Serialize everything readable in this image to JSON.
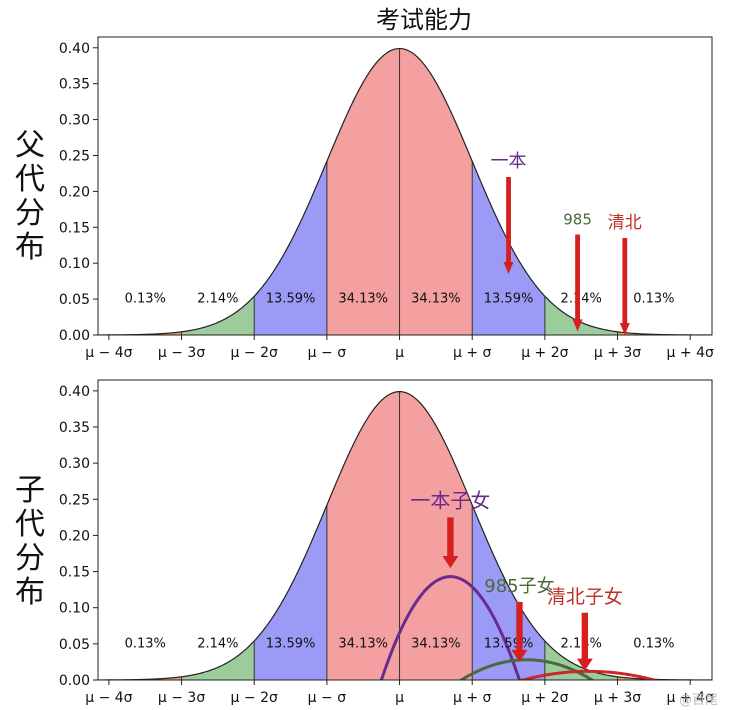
{
  "title": "考试能力",
  "watermark": "@百尾",
  "colors": {
    "red": "#f4a0a0",
    "blue": "#9b9bf7",
    "green": "#9ccc9c",
    "orange": "#f2a25a",
    "arrow": "#d62020"
  },
  "chart_data": [
    {
      "type": "area",
      "side_label": "父代分布",
      "x_ticks": [
        "μ − 4σ",
        "μ − 3σ",
        "μ − 2σ",
        "μ − σ",
        "μ",
        "μ + σ",
        "μ + 2σ",
        "μ + 3σ",
        "μ + 4σ"
      ],
      "x_tick_values": [
        -4,
        -3,
        -2,
        -1,
        0,
        1,
        2,
        3,
        4
      ],
      "xlim": [
        -4.15,
        4.3
      ],
      "ylim": [
        0,
        0.415
      ],
      "y_ticks": [
        "0.00",
        "0.05",
        "0.10",
        "0.15",
        "0.20",
        "0.25",
        "0.30",
        "0.35",
        "0.40"
      ],
      "y_tick_values": [
        0,
        0.05,
        0.1,
        0.15,
        0.2,
        0.25,
        0.3,
        0.35,
        0.4
      ],
      "regions": [
        {
          "from": -4,
          "to": -3,
          "color": "orange",
          "label": "0.13%"
        },
        {
          "from": -3,
          "to": -2,
          "color": "green",
          "label": "2.14%"
        },
        {
          "from": -2,
          "to": -1,
          "color": "blue",
          "label": "13.59%"
        },
        {
          "from": -1,
          "to": 0,
          "color": "red",
          "label": "34.13%"
        },
        {
          "from": 0,
          "to": 1,
          "color": "red",
          "label": "34.13%"
        },
        {
          "from": 1,
          "to": 2,
          "color": "blue",
          "label": "13.59%"
        },
        {
          "from": 2,
          "to": 3,
          "color": "green",
          "label": "2.14%"
        },
        {
          "from": 3,
          "to": 4,
          "color": "orange",
          "label": "0.13%"
        }
      ],
      "annotations": [
        {
          "text": "一本",
          "x": 1.5,
          "y_top": 0.22,
          "y_tip": 0.085,
          "color": "#6b2a8e",
          "size": 18
        },
        {
          "text": "985",
          "x": 2.45,
          "y_top": 0.14,
          "y_tip": 0.005,
          "color": "#4a6a3a",
          "size": 15
        },
        {
          "text": "清北",
          "x": 3.1,
          "y_top": 0.135,
          "y_tip": 0.0,
          "color": "#c0302a",
          "size": 17
        }
      ]
    },
    {
      "type": "area",
      "side_label": "子代分布",
      "x_ticks": [
        "μ − 4σ",
        "μ − 3σ",
        "μ − 2σ",
        "μ − σ",
        "μ",
        "μ + σ",
        "μ + 2σ",
        "μ + 3σ",
        "μ + 4σ"
      ],
      "x_tick_values": [
        -4,
        -3,
        -2,
        -1,
        0,
        1,
        2,
        3,
        4
      ],
      "xlim": [
        -4.15,
        4.3
      ],
      "ylim": [
        0,
        0.415
      ],
      "y_ticks": [
        "0.00",
        "0.05",
        "0.10",
        "0.15",
        "0.20",
        "0.25",
        "0.30",
        "0.35",
        "0.40"
      ],
      "y_tick_values": [
        0,
        0.05,
        0.1,
        0.15,
        0.2,
        0.25,
        0.3,
        0.35,
        0.4
      ],
      "regions": [
        {
          "from": -4,
          "to": -3,
          "color": "orange",
          "label": "0.13%"
        },
        {
          "from": -3,
          "to": -2,
          "color": "green",
          "label": "2.14%"
        },
        {
          "from": -2,
          "to": -1,
          "color": "blue",
          "label": "13.59%"
        },
        {
          "from": -1,
          "to": 0,
          "color": "red",
          "label": "34.13%"
        },
        {
          "from": 0,
          "to": 1,
          "color": "red",
          "label": "34.13%"
        },
        {
          "from": 1,
          "to": 2,
          "color": "blue",
          "label": "13.59%"
        },
        {
          "from": 2,
          "to": 3,
          "color": "green",
          "label": "2.14%"
        },
        {
          "from": 3,
          "to": 4,
          "color": "orange",
          "label": "0.13%"
        }
      ],
      "sub_curves": [
        {
          "name": "一本子女",
          "center": 0.7,
          "peak": 0.143,
          "halfwidth": 0.95,
          "color": "#6b2a8e"
        },
        {
          "name": "985子女",
          "center": 1.75,
          "peak": 0.028,
          "halfwidth": 0.9,
          "color": "#4a6a3a"
        },
        {
          "name": "清北子女",
          "center": 2.6,
          "peak": 0.012,
          "halfwidth": 0.9,
          "color": "#c8282a"
        }
      ],
      "annotations": [
        {
          "text": "一本子女",
          "x": 0.7,
          "y_top": 0.225,
          "y_tip": 0.155,
          "color": "#6b2a8e",
          "size": 20
        },
        {
          "text": "985子女",
          "x": 1.65,
          "y_top": 0.108,
          "y_tip": 0.025,
          "color": "#4a6a3a",
          "size": 18
        },
        {
          "text": "清北子女",
          "x": 2.55,
          "y_top": 0.093,
          "y_tip": 0.013,
          "color": "#c0302a",
          "size": 19
        }
      ]
    }
  ]
}
